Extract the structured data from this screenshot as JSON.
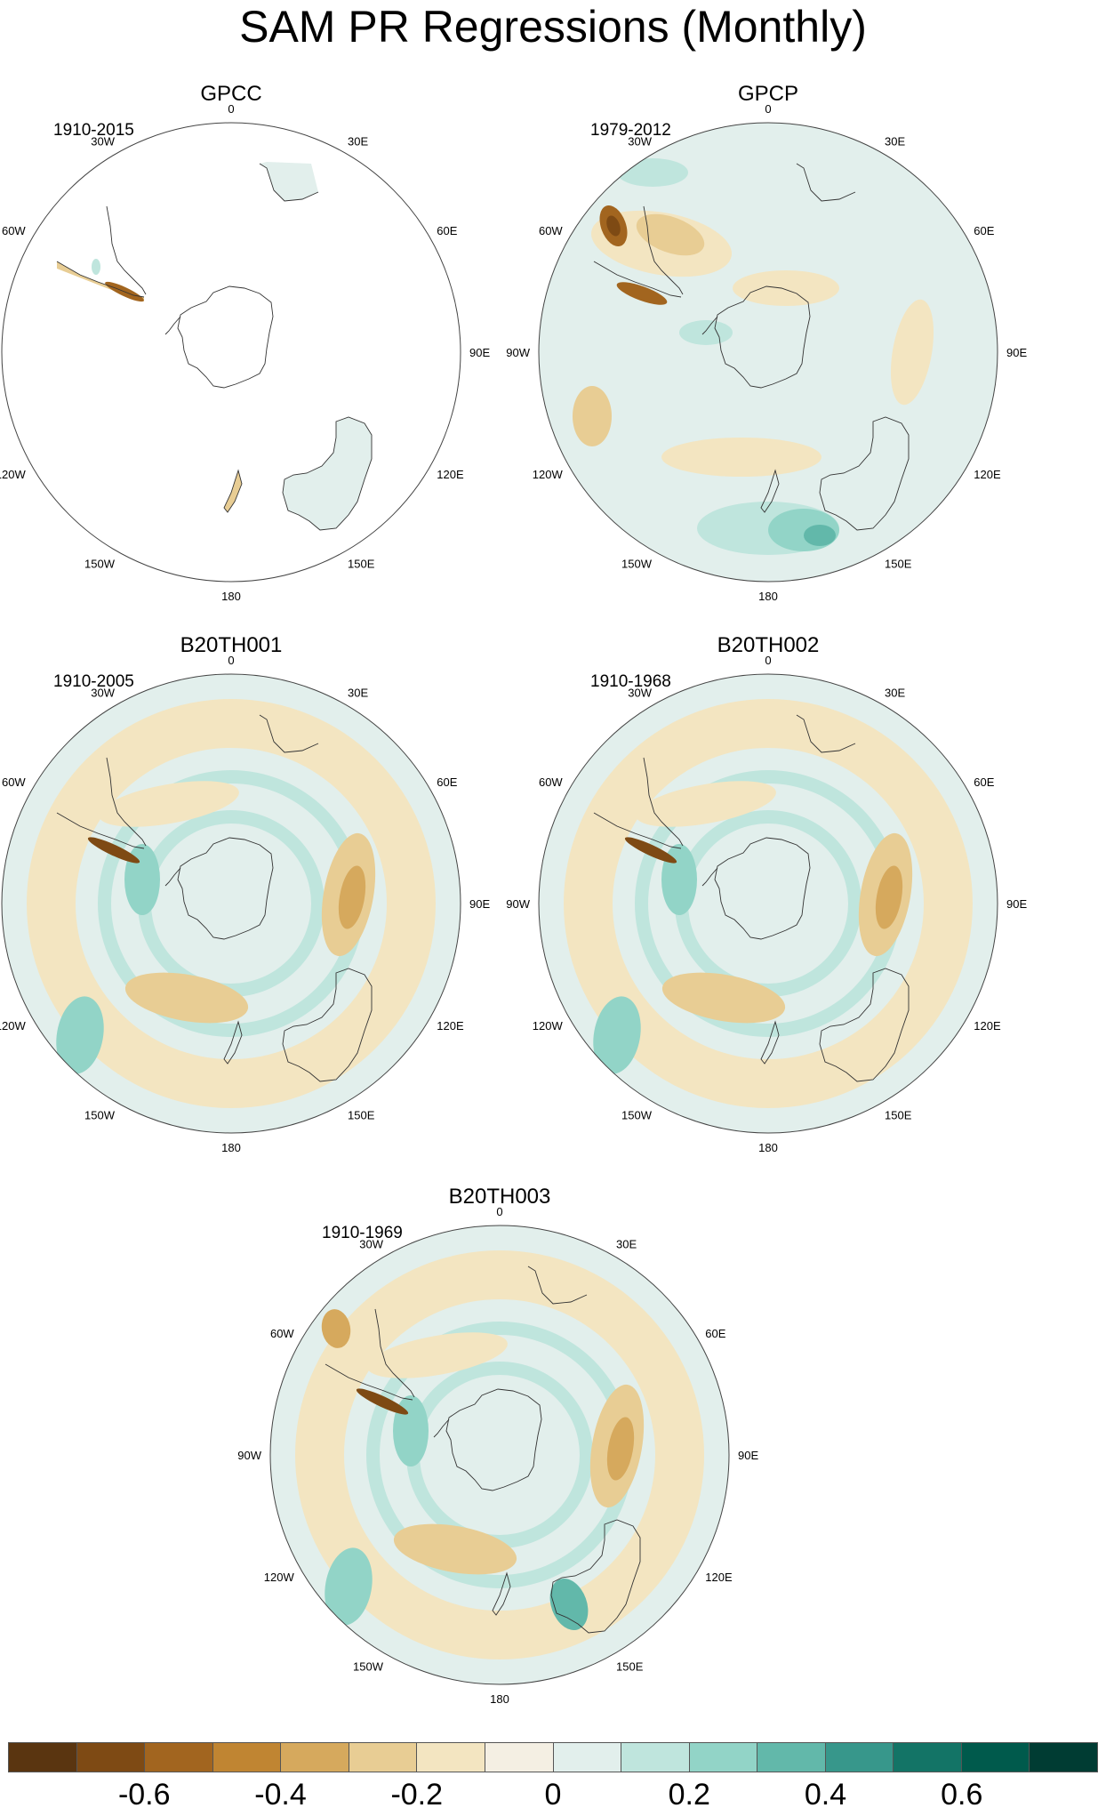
{
  "title": "SAM PR Regressions (Monthly)",
  "longitude_labels": [
    "0",
    "30E",
    "60E",
    "90E",
    "120E",
    "150E",
    "180",
    "150W",
    "120W",
    "90W",
    "60W",
    "30W"
  ],
  "panels": [
    {
      "id": "gpcc",
      "title": "GPCC",
      "period": "1910-2015",
      "coverage": "land-only"
    },
    {
      "id": "gpcp",
      "title": "GPCP",
      "period": "1979-2012",
      "coverage": "full"
    },
    {
      "id": "b1",
      "title": "B20TH001",
      "period": "1910-2005",
      "coverage": "full"
    },
    {
      "id": "b2",
      "title": "B20TH002",
      "period": "1910-1968",
      "coverage": "full"
    },
    {
      "id": "b3",
      "title": "B20TH003",
      "period": "1910-1969",
      "coverage": "full"
    }
  ],
  "colorbar": {
    "colors": [
      "#5a3510",
      "#7e4a14",
      "#a2651f",
      "#c08532",
      "#d6a95d",
      "#e8cd94",
      "#f3e5c1",
      "#f4efe3",
      "#e2efec",
      "#bfe5dd",
      "#92d4c7",
      "#62b8aa",
      "#37978b",
      "#137466",
      "#005a4c",
      "#003c33"
    ],
    "labels": [
      "-0.6",
      "-0.4",
      "-0.2",
      "0",
      "0.2",
      "0.4",
      "0.6"
    ],
    "label_values": [
      -0.6,
      -0.4,
      -0.2,
      0,
      0.2,
      0.4,
      0.6
    ],
    "range": [
      -0.8,
      0.8
    ]
  }
}
